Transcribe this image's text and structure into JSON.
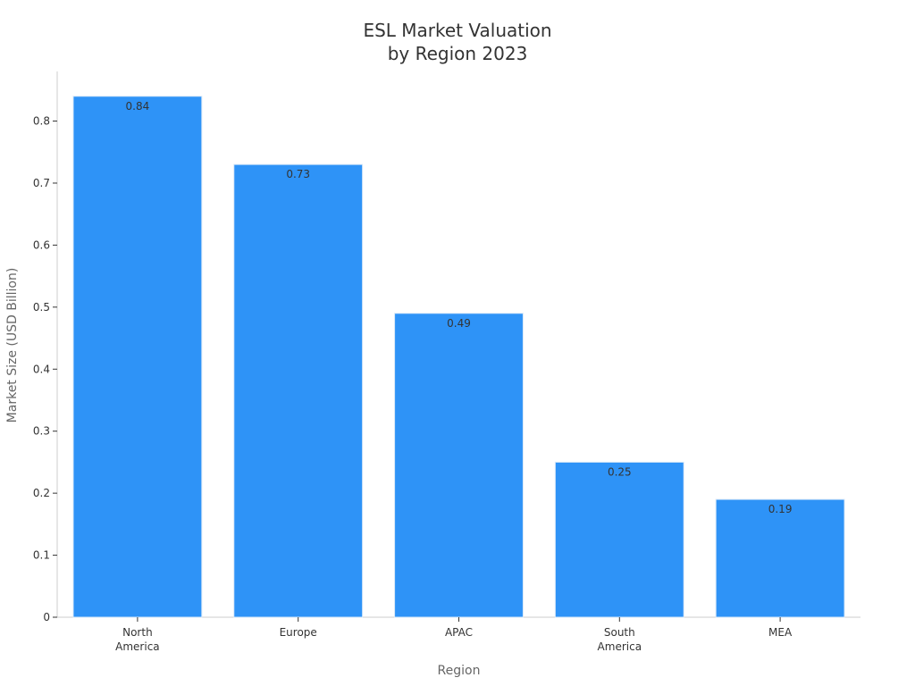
{
  "chart_data": {
    "type": "bar",
    "title_lines": [
      "ESL Market Valuation",
      "by Region 2023"
    ],
    "categories": [
      [
        "North",
        "America"
      ],
      [
        "Europe"
      ],
      [
        "APAC"
      ],
      [
        "South",
        "America"
      ],
      [
        "MEA"
      ]
    ],
    "values": [
      0.84,
      0.73,
      0.49,
      0.25,
      0.19
    ],
    "data_labels": [
      "0.84",
      "0.73",
      "0.49",
      "0.25",
      "0.19"
    ],
    "xlabel": "Region",
    "ylabel": "Market Size (USD Billion)",
    "ylim": [
      0,
      0.88
    ],
    "yticks": [
      0,
      0.1,
      0.2,
      0.3,
      0.4,
      0.5,
      0.6,
      0.7,
      0.8
    ],
    "ytick_labels": [
      "0",
      "0.1",
      "0.2",
      "0.3",
      "0.4",
      "0.5",
      "0.6",
      "0.7",
      "0.8"
    ],
    "bar_color": "#2e93f7",
    "grid": false,
    "legend": "none"
  }
}
